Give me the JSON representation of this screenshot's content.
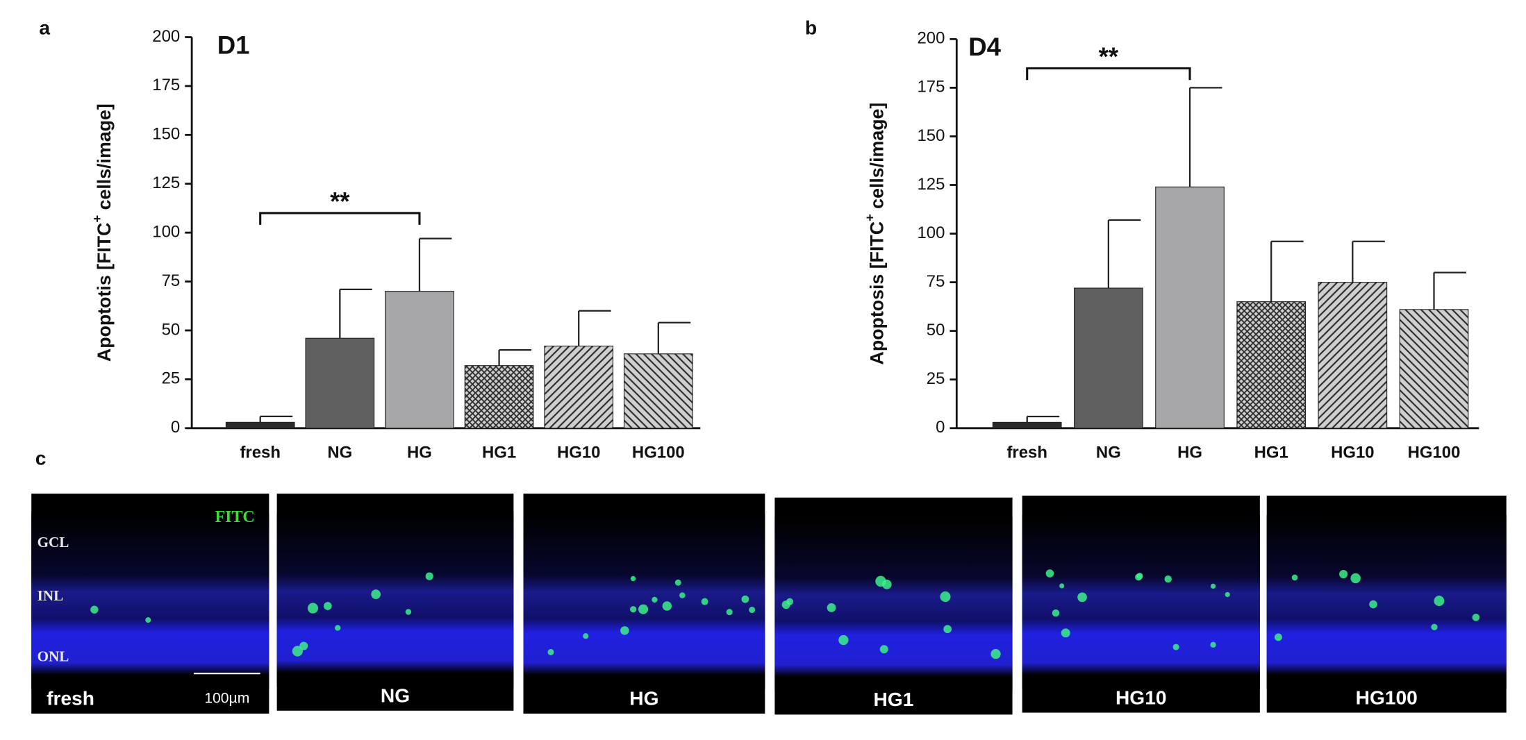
{
  "chart_data": [
    {
      "type": "bar",
      "panel_label": "a",
      "title": "D1",
      "ylabel_parts": [
        "Apoptotis  [FITC",
        "+",
        " cells/image]"
      ],
      "categories": [
        "fresh",
        "NG",
        "HG",
        "HG1",
        "HG10",
        "HG100"
      ],
      "values": [
        3,
        46,
        70,
        32,
        42,
        38
      ],
      "errors": [
        3,
        25,
        27,
        8,
        18,
        16
      ],
      "colors": [
        "#2b2b2b",
        "#5f5f5f",
        "#a7a7a9",
        "#c9c9c9",
        "#c9c9c9",
        "#c9c9c9"
      ],
      "patterns": [
        "none",
        "none",
        "none",
        "crosshatch",
        "diagonal",
        "diagonal-back"
      ],
      "ylim": [
        0,
        200
      ],
      "yticks": [
        0,
        25,
        50,
        75,
        100,
        125,
        150,
        175,
        200
      ],
      "annotations": [
        {
          "text": "**",
          "from": 0,
          "to": 2,
          "y": 110
        }
      ]
    },
    {
      "type": "bar",
      "panel_label": "b",
      "title": "D4",
      "ylabel_parts": [
        "Apoptosis [FITC",
        "+",
        " cells/image]"
      ],
      "categories": [
        "fresh",
        "NG",
        "HG",
        "HG1",
        "HG10",
        "HG100"
      ],
      "values": [
        3,
        72,
        124,
        65,
        75,
        61
      ],
      "errors": [
        3,
        35,
        51,
        31,
        21,
        19
      ],
      "colors": [
        "#2b2b2b",
        "#5f5f5f",
        "#a7a7a9",
        "#c9c9c9",
        "#c9c9c9",
        "#c9c9c9"
      ],
      "patterns": [
        "none",
        "none",
        "none",
        "crosshatch",
        "diagonal",
        "diagonal-back"
      ],
      "ylim": [
        0,
        200
      ],
      "yticks": [
        0,
        25,
        50,
        75,
        100,
        125,
        150,
        175,
        200
      ],
      "annotations": [
        {
          "text": "**",
          "from": 0,
          "to": 2,
          "y": 185
        }
      ]
    }
  ],
  "micrographs": {
    "panel_label": "c",
    "stain": "FITC",
    "layers": [
      "GCL",
      "INL",
      "ONL"
    ],
    "scale_bar": "100µm",
    "images": [
      "fresh",
      "NG",
      "HG",
      "HG1",
      "HG10",
      "HG100"
    ]
  }
}
